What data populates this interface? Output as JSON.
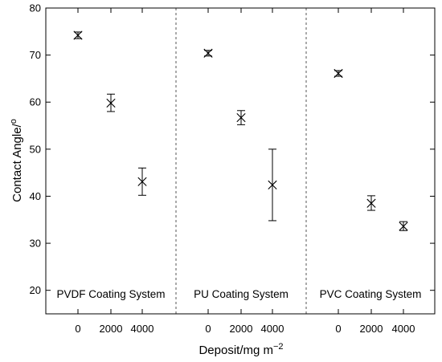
{
  "chart_data": {
    "type": "scatter",
    "title": "",
    "xlabel": "Deposit/mg m",
    "xlabel_sup": "−2",
    "ylabel": "Contact Angle/",
    "ylabel_sup": "o",
    "ylim": [
      15,
      80
    ],
    "yticks": [
      20,
      30,
      40,
      50,
      60,
      70,
      80
    ],
    "grid": false,
    "legend": "none",
    "colors": {
      "marker": "#000000",
      "frame": "#000000",
      "separator": "#555555"
    },
    "panels": [
      {
        "name": "PVDF Coating System",
        "x": [
          "0",
          "2000",
          "4000"
        ],
        "y": [
          74.2,
          59.8,
          43.1
        ],
        "err_low": [
          73.5,
          58.0,
          40.2
        ],
        "err_high": [
          74.9,
          61.7,
          46.0
        ]
      },
      {
        "name": "PU Coating System",
        "x": [
          "0",
          "2000",
          "4000"
        ],
        "y": [
          70.4,
          56.7,
          42.4
        ],
        "err_low": [
          69.8,
          55.2,
          34.8
        ],
        "err_high": [
          71.0,
          58.2,
          50.0
        ]
      },
      {
        "name": "PVC Coating System",
        "x": [
          "0",
          "2000",
          "4000"
        ],
        "y": [
          66.1,
          38.5,
          33.6
        ],
        "err_low": [
          65.5,
          37.0,
          32.7
        ],
        "err_high": [
          66.7,
          40.1,
          34.6
        ]
      }
    ]
  }
}
